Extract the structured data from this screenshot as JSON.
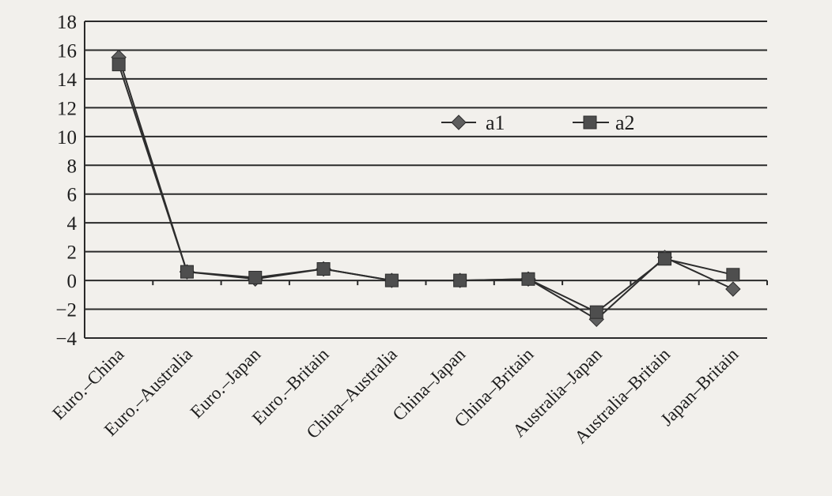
{
  "chart_data": {
    "type": "line",
    "categories": [
      "Euro.–China",
      "Euro.–Australia",
      "Euro.–Japan",
      "Euro.–Britain",
      "China–Australia",
      "China–Japan",
      "China–Britain",
      "Australia–Japan",
      "Australia–Britain",
      "Japan–Britain"
    ],
    "series": [
      {
        "name": "a1",
        "marker": "diamond",
        "values": [
          15.5,
          0.6,
          0.1,
          0.8,
          0.0,
          0.0,
          0.1,
          -2.7,
          1.6,
          -0.6
        ]
      },
      {
        "name": "a2",
        "marker": "square",
        "values": [
          15.0,
          0.6,
          0.2,
          0.8,
          0.0,
          0.0,
          0.1,
          -2.2,
          1.5,
          0.4
        ]
      }
    ],
    "ylim": [
      -4,
      18
    ],
    "yticks": [
      18,
      16,
      14,
      12,
      10,
      8,
      6,
      4,
      2,
      0,
      -2,
      -4
    ],
    "grid": true,
    "legend_position": "top-right",
    "colors": {
      "line": "#2c2c2c",
      "grid": "#2a2a2a",
      "background": "#f2f0ec"
    }
  }
}
